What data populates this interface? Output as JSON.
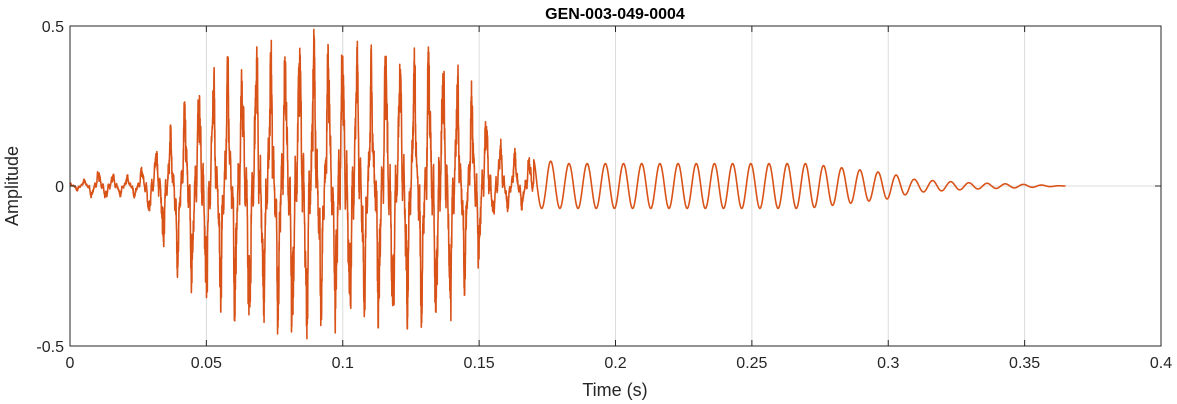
{
  "chart_data": {
    "type": "line",
    "title": "GEN-003-049-0004",
    "xlabel": "Time (s)",
    "ylabel": "Amplitude",
    "xlim": [
      0,
      0.4
    ],
    "ylim": [
      -0.5,
      0.5
    ],
    "x_ticks": [
      0,
      0.05,
      0.1,
      0.15,
      0.2,
      0.25,
      0.3,
      0.35,
      0.4
    ],
    "x_tick_labels": [
      "0",
      "0.05",
      "0.1",
      "0.15",
      "0.2",
      "0.25",
      "0.3",
      "0.35",
      "0.4"
    ],
    "y_ticks": [
      -0.5,
      0,
      0.5
    ],
    "y_tick_labels": [
      "-0.5",
      "0",
      "0.5"
    ],
    "grid": true,
    "series": [
      {
        "color": "#D95319",
        "duration_s": 0.365,
        "envelope": {
          "t": [
            0,
            0.005,
            0.01,
            0.02,
            0.025,
            0.03,
            0.035,
            0.04,
            0.05,
            0.06,
            0.07,
            0.08,
            0.09,
            0.1,
            0.11,
            0.12,
            0.13,
            0.14,
            0.15,
            0.155,
            0.16,
            0.17,
            0.18,
            0.19,
            0.2,
            0.22,
            0.25,
            0.27,
            0.28,
            0.29,
            0.3,
            0.31,
            0.33,
            0.35,
            0.365
          ],
          "max": [
            0.01,
            0.02,
            0.05,
            0.03,
            0.05,
            0.09,
            0.16,
            0.24,
            0.35,
            0.42,
            0.46,
            0.48,
            0.49,
            0.47,
            0.44,
            0.45,
            0.44,
            0.4,
            0.3,
            0.18,
            0.14,
            0.09,
            0.07,
            0.07,
            0.07,
            0.07,
            0.07,
            0.07,
            0.06,
            0.05,
            0.04,
            0.02,
            0.01,
            0.005,
            0.0
          ],
          "min": [
            -0.01,
            -0.02,
            -0.05,
            -0.03,
            -0.04,
            -0.11,
            -0.2,
            -0.3,
            -0.38,
            -0.42,
            -0.45,
            -0.47,
            -0.48,
            -0.46,
            -0.44,
            -0.45,
            -0.44,
            -0.42,
            -0.25,
            -0.1,
            -0.08,
            -0.07,
            -0.07,
            -0.07,
            -0.07,
            -0.07,
            -0.07,
            -0.07,
            -0.06,
            -0.05,
            -0.04,
            -0.02,
            -0.01,
            -0.005,
            0.0
          ]
        }
      }
    ]
  }
}
